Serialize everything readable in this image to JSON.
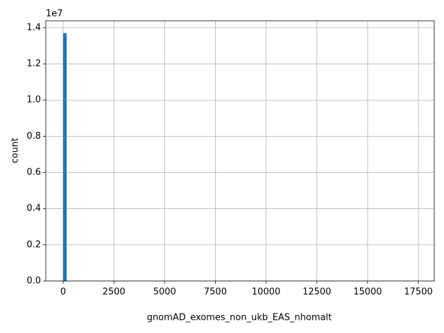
{
  "chart_data": {
    "type": "histogram",
    "xlabel": "gnomAD_exomes_non_ukb_EAS_nhomalt",
    "ylabel": "count",
    "y_offset_label": "1e7",
    "color": "#1f77b4",
    "grid": true,
    "bins": [
      0,
      174,
      348,
      522,
      696,
      870,
      1044,
      1218,
      1392,
      1566,
      1740,
      1914,
      2088,
      2262,
      2436,
      2610,
      2784,
      2958,
      3132,
      3306,
      3480,
      3654,
      3828,
      4002,
      4176,
      4350,
      4524,
      4698,
      4872,
      5046,
      5220,
      5394,
      5568,
      5742,
      5916,
      6090,
      6264,
      6438,
      6612,
      6786,
      6960,
      7134,
      7308,
      7482,
      7656,
      7830,
      8004,
      8178,
      8352,
      8526,
      8700,
      8874,
      9048,
      9222,
      9396,
      9570,
      9744,
      9918,
      10092,
      10266,
      10440,
      10614,
      10788,
      10962,
      11136,
      11310,
      11484,
      11658,
      11832,
      12006,
      12180,
      12354,
      12528,
      12702,
      12876,
      13050,
      13224,
      13398,
      13572,
      13746,
      13920,
      14094,
      14268,
      14442,
      14616,
      14790,
      14964,
      15138,
      15312,
      15486,
      15660,
      15834,
      16008,
      16182,
      16356,
      16530,
      16704,
      16878,
      17052,
      17226,
      17400
    ],
    "counts": [
      1.37,
      0,
      0,
      0,
      0,
      0,
      0,
      0,
      0,
      0,
      0,
      0,
      0,
      0,
      0,
      0,
      0,
      0,
      0,
      0,
      0,
      0,
      0,
      0,
      0,
      0,
      0,
      0,
      0,
      0,
      0,
      0,
      0,
      0,
      0,
      0,
      0,
      0,
      0,
      0,
      0,
      0,
      0,
      0,
      0,
      0,
      0,
      0,
      0,
      0,
      0,
      0,
      0,
      0,
      0,
      0,
      0,
      0,
      0,
      0,
      0,
      0,
      0,
      0,
      0,
      0,
      0,
      0,
      0,
      0,
      0,
      0,
      0,
      0,
      0,
      0,
      0,
      0,
      0,
      0,
      0,
      0,
      0,
      0,
      0,
      0,
      0,
      0,
      0,
      0,
      0,
      0,
      0,
      0,
      0,
      0,
      0,
      0,
      0,
      0
    ],
    "xlim": [
      -854,
      18284
    ],
    "ylim": [
      0,
      1.438
    ],
    "xticks": [
      0,
      2500,
      5000,
      7500,
      10000,
      12500,
      15000,
      17500
    ],
    "yticks": [
      {
        "value": 0,
        "label": "0.0"
      },
      0.2,
      0.4,
      0.6,
      0.8,
      {
        "value": 1,
        "label": "1.0"
      },
      1.2,
      1.4
    ]
  }
}
